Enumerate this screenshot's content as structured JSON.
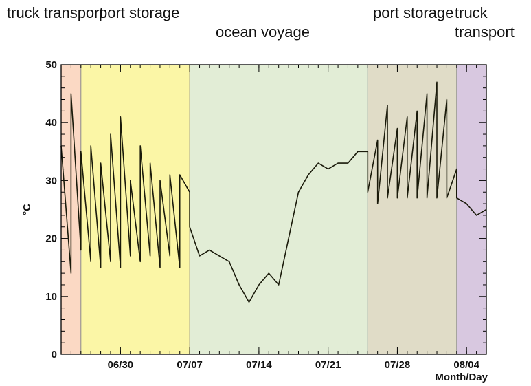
{
  "chart_data": {
    "type": "line",
    "ylabel": "°C",
    "xlabel": "Month/Day",
    "ylim": [
      0,
      50
    ],
    "xlim": [
      "06/24",
      "08/06"
    ],
    "y_ticks": [
      0,
      10,
      20,
      30,
      40,
      50
    ],
    "x_ticks": [
      "06/30",
      "07/07",
      "07/14",
      "07/21",
      "07/28",
      "08/04"
    ],
    "grid": false,
    "phases": [
      {
        "label": "truck transport",
        "start": "06/24",
        "end": "06/26",
        "color": "#fbd9c4"
      },
      {
        "label": "port storage",
        "start": "06/26",
        "end": "07/07",
        "color": "#fbf6a6"
      },
      {
        "label": "ocean voyage",
        "start": "07/07",
        "end": "07/25",
        "color": "#e2edd6"
      },
      {
        "label": "port storage",
        "start": "07/25",
        "end": "08/03",
        "color": "#e0dcc7"
      },
      {
        "label": "truck transport",
        "start": "08/03",
        "end": "08/06",
        "color": "#d8c8e0"
      }
    ],
    "series": [
      {
        "color": "#1a1a0a",
        "x": [
          "06/24",
          "06/25",
          "06/25",
          "06/26",
          "06/26",
          "06/27",
          "06/27",
          "06/28",
          "06/28",
          "06/29",
          "06/29",
          "06/30",
          "06/30",
          "07/01",
          "07/01",
          "07/02",
          "07/02",
          "07/03",
          "07/03",
          "07/04",
          "07/04",
          "07/05",
          "07/05",
          "07/06",
          "07/06",
          "07/07",
          "07/07",
          "07/08",
          "07/09",
          "07/10",
          "07/11",
          "07/12",
          "07/13",
          "07/14",
          "07/15",
          "07/16",
          "07/17",
          "07/18",
          "07/19",
          "07/20",
          "07/21",
          "07/22",
          "07/23",
          "07/24",
          "07/25",
          "07/25",
          "07/26",
          "07/26",
          "07/27",
          "07/27",
          "07/28",
          "07/28",
          "07/29",
          "07/29",
          "07/30",
          "07/30",
          "07/31",
          "07/31",
          "08/01",
          "08/01",
          "08/02",
          "08/02",
          "08/03",
          "08/03",
          "08/04",
          "08/05",
          "08/06"
        ],
        "y": [
          36,
          14,
          45,
          18,
          35,
          16,
          36,
          15,
          33,
          16,
          38,
          15,
          41,
          17,
          30,
          16,
          36,
          17,
          33,
          15,
          30,
          17,
          31,
          15,
          31,
          28,
          22,
          17,
          18,
          17,
          16,
          12,
          9,
          12,
          14,
          12,
          20,
          28,
          31,
          33,
          32,
          33,
          33,
          35,
          35,
          28,
          37,
          26,
          43,
          27,
          39,
          27,
          41,
          27,
          42,
          27,
          45,
          27,
          47,
          27,
          44,
          27,
          32,
          27,
          26,
          24,
          25
        ]
      }
    ]
  }
}
